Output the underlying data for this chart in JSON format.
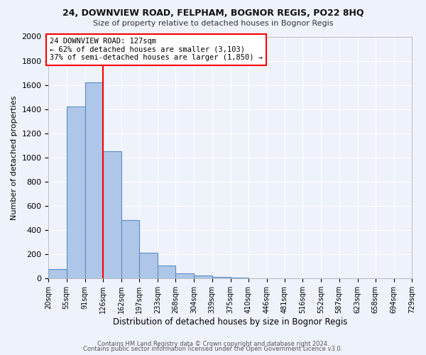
{
  "title": "24, DOWNVIEW ROAD, FELPHAM, BOGNOR REGIS, PO22 8HQ",
  "subtitle": "Size of property relative to detached houses in Bognor Regis",
  "xlabel": "Distribution of detached houses by size in Bognor Regis",
  "ylabel": "Number of detached properties",
  "bin_labels": [
    "20sqm",
    "55sqm",
    "91sqm",
    "126sqm",
    "162sqm",
    "197sqm",
    "233sqm",
    "268sqm",
    "304sqm",
    "339sqm",
    "375sqm",
    "410sqm",
    "446sqm",
    "481sqm",
    "516sqm",
    "552sqm",
    "587sqm",
    "623sqm",
    "658sqm",
    "694sqm",
    "729sqm"
  ],
  "bin_edges": [
    20,
    55,
    91,
    126,
    162,
    197,
    233,
    268,
    304,
    339,
    375,
    410,
    446,
    481,
    516,
    552,
    587,
    623,
    658,
    694,
    729
  ],
  "all_heights": [
    80,
    1420,
    1620,
    1050,
    480,
    210,
    105,
    40,
    25,
    15,
    5,
    2,
    1,
    0,
    0,
    0,
    0,
    0,
    0,
    0
  ],
  "bar_color": "#aec6e8",
  "bar_edge_color": "#5b8ec4",
  "vline_x": 126,
  "vline_color": "red",
  "annotation_text": "24 DOWNVIEW ROAD: 127sqm\n← 62% of detached houses are smaller (3,103)\n37% of semi-detached houses are larger (1,850) →",
  "annotation_box_color": "white",
  "annotation_box_edge": "red",
  "ylim": [
    0,
    2000
  ],
  "yticks": [
    0,
    200,
    400,
    600,
    800,
    1000,
    1200,
    1400,
    1600,
    1800,
    2000
  ],
  "footer1": "Contains HM Land Registry data © Crown copyright and database right 2024.",
  "footer2": "Contains public sector information licensed under the Open Government Licence v3.0.",
  "bg_color": "#eef2fb",
  "plot_bg_color": "#eef2fb",
  "grid_color": "white"
}
